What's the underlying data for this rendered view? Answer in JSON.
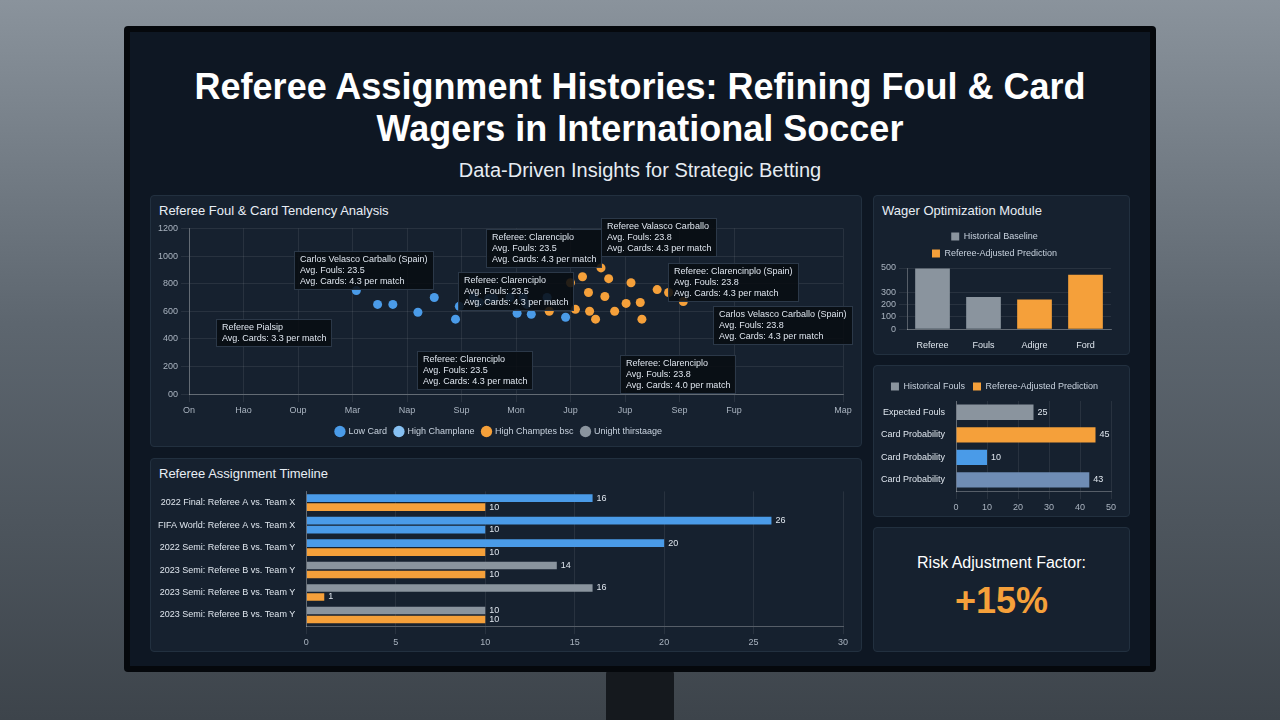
{
  "title": "Referee Assignment Histories: Refining Foul & Card Wagers in International Soccer",
  "subtitle": "Data-Driven Insights for Strategic Betting",
  "risk": {
    "label": "Risk Adjustment Factor:",
    "value": "+15%"
  },
  "chart_data": [
    {
      "type": "scatter",
      "title": "Referee Foul & Card Tendency Analysis",
      "xlim": [
        0,
        12
      ],
      "xticks": [
        {
          "value": 0,
          "label": "On"
        },
        {
          "value": 1,
          "label": "Hao"
        },
        {
          "value": 2,
          "label": "Oup"
        },
        {
          "value": 3,
          "label": "Mar"
        },
        {
          "value": 4,
          "label": "Nap"
        },
        {
          "value": 5,
          "label": "Sup"
        },
        {
          "value": 6,
          "label": "Mon"
        },
        {
          "value": 7,
          "label": "Jup"
        },
        {
          "value": 8,
          "label": "Jup"
        },
        {
          "value": 9,
          "label": "Sep"
        },
        {
          "value": 10,
          "label": "Fup"
        },
        {
          "value": 12,
          "label": "Map"
        }
      ],
      "ylim": [
        0,
        1200
      ],
      "yticks": [
        {
          "value": 0,
          "label": "00"
        },
        200,
        400,
        600,
        800,
        1000,
        1200
      ],
      "grid": true,
      "legend": "bottom",
      "marker": "circle",
      "series": [
        {
          "name": "Low Card",
          "color": "#4a9be8",
          "x": [
            3.07,
            3.46,
            3.74,
            4.2,
            4.5,
            4.89,
            4.96,
            5.22,
            5.33,
            5.5,
            5.59,
            5.89,
            6.02,
            6.13,
            6.2,
            6.28,
            6.57,
            6.91
          ],
          "values": [
            750,
            650,
            650,
            593,
            700,
            543,
            636,
            700,
            664,
            693,
            693,
            700,
            586,
            700,
            650,
            579,
            700,
            557
          ]
        },
        {
          "name": "High Champlane",
          "color": "#86c0f2",
          "x": [],
          "values": []
        },
        {
          "name": "High Champtes bsc",
          "color": "#f5a03a",
          "x": [
            6.61,
            7.0,
            7.09,
            7.22,
            7.33,
            7.35,
            7.46,
            7.56,
            7.63,
            7.7,
            7.81,
            8.02,
            8.11,
            8.28,
            8.31,
            8.59,
            8.8,
            9.07
          ],
          "values": [
            600,
            807,
            614,
            850,
            736,
            600,
            543,
            914,
            707,
            836,
            600,
            657,
            807,
            664,
            543,
            757,
            736,
            671
          ]
        },
        {
          "name": "Unight thirstaage",
          "color": "#8a949e",
          "x": [],
          "values": []
        }
      ],
      "annotations": [
        [
          "Carlos Velasco Carballo (Spain)",
          "Avg. Fouls: 23.5",
          "Avg. Cards: 4.3 per match"
        ],
        [
          "Referee Pialsip",
          "Avg. Cards: 3.3 per match"
        ],
        [
          "Referee: Clarenciplo",
          "Avg. Fouls: 23.5",
          "Avg. Cards: 4.3 per match"
        ],
        [
          "Referee Valasco Carballo",
          "Avg. Fouls: 23.8",
          "Avg. Cards: 4.3 per match"
        ],
        [
          "Referee: Clarenciplo",
          "Avg. Fouls: 23.5",
          "Avg. Cards: 4.3 per match"
        ],
        [
          "Referee: Clarencinplo (Spain)",
          "Avg. Fouls: 23.8",
          "Avg. Cards: 4.3 per match"
        ],
        [
          "Carlos Velasco Carballo (Spain)",
          "Avg. Fouls: 23.8",
          "Avg. Cards: 4.3 per match"
        ],
        [
          "Referee: Clarenciplo",
          "Avg. Fouls: 23.5",
          "Avg. Cards: 4.3 per match"
        ],
        [
          "Referee: Clarenciplo",
          "Avg. Fouls: 23.8",
          "Avg. Cards: 4.0 per match"
        ]
      ]
    },
    {
      "type": "bar",
      "orientation": "horizontal",
      "title": "Referee Assignment Timeline",
      "categories": [
        "2022 Final: Referee A vs. Team X",
        "FIFA World: Referee A vs. Team X",
        "2022 Semi: Referee B vs. Team Y",
        "2023 Semi: Referee B vs. Team Y",
        "2023 Semi: Referee B vs. Team Y",
        "2023 Semi: Referee B vs. Team Y"
      ],
      "xlim": [
        0,
        30
      ],
      "xticks": [
        0,
        5,
        10,
        15,
        20,
        25,
        30
      ],
      "grid": true,
      "data_labels": true,
      "series": [
        {
          "colors": [
            "#4a9be8",
            "#4a9be8",
            "#4a9be8",
            "#8a949e",
            "#8a949e",
            "#8a949e"
          ],
          "values": [
            16,
            26,
            20,
            14,
            16,
            10
          ]
        },
        {
          "colors": [
            "#f5a03a",
            "#4a9be8",
            "#f5a03a",
            "#f5a03a",
            "#f5a03a",
            "#f5a03a"
          ],
          "values": [
            10,
            10,
            10,
            10,
            1,
            10
          ]
        }
      ]
    },
    {
      "type": "bar",
      "title": "Wager Optimization Module",
      "categories": [
        "Referee",
        "Fouls",
        "Adigre",
        "Ford"
      ],
      "ylim": [
        0,
        500
      ],
      "yticks": [
        0,
        100,
        200,
        300,
        500
      ],
      "grid": true,
      "legend": "top",
      "series": [
        {
          "name": "Historical Baseline",
          "color": "#8a949e",
          "values": [
            495,
            263,
            null,
            null
          ]
        },
        {
          "name": "Referee-Adjusted Prediction",
          "color": "#f5a03a",
          "values": [
            null,
            null,
            242,
            445
          ]
        }
      ]
    },
    {
      "type": "bar",
      "orientation": "horizontal",
      "categories": [
        "Expected Fouls",
        "Card Probability",
        "Card Probability",
        "Card Probability"
      ],
      "xlim": [
        0,
        50
      ],
      "xticks": [
        0,
        10,
        20,
        30,
        40,
        50
      ],
      "grid": true,
      "legend": "top",
      "data_labels": true,
      "series": [
        {
          "name": "Historical Fouls",
          "color": "#8a949e",
          "colors": [
            "#8a949e",
            null,
            "#4a9be8",
            "#6f8db5"
          ],
          "values": [
            25,
            null,
            10,
            43
          ]
        },
        {
          "name": "Referee-Adjusted Prediction",
          "color": "#f5a03a",
          "values": [
            null,
            45,
            null,
            null
          ]
        }
      ]
    }
  ]
}
